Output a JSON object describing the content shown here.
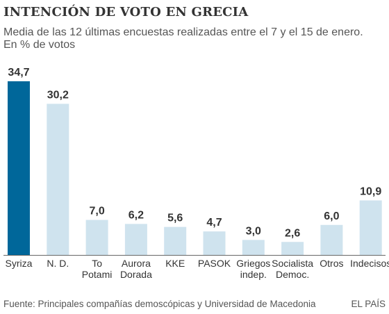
{
  "header": {
    "title": "INTENCIÓN DE VOTO EN GRECIA",
    "subtitle_line1": "Media de las 12 últimas encuestas realizadas entre el 7 y el 15 de enero.",
    "subtitle_line2": "En % de votos"
  },
  "footer": {
    "source": "Fuente: Principales compañías demoscópicas y Universidad de Macedonia",
    "brand": "EL PAÍS"
  },
  "colors": {
    "highlight": "#00679a",
    "bar": "#cfe3ee",
    "baseline": "#666666",
    "text": "#333333"
  },
  "chart_data": {
    "type": "bar",
    "title": "INTENCIÓN DE VOTO EN GRECIA",
    "subtitle": "Media de las 12 últimas encuestas realizadas entre el 7 y el 15 de enero. En % de votos",
    "categories": [
      [
        "Syriza"
      ],
      [
        "N. D."
      ],
      [
        "To",
        "Potami"
      ],
      [
        "Aurora",
        "Dorada"
      ],
      [
        "KKE"
      ],
      [
        "PASOK"
      ],
      [
        "Griegos",
        "indep."
      ],
      [
        "Socialista",
        "Democ."
      ],
      [
        "Otros"
      ],
      [
        "Indecisos"
      ]
    ],
    "values": [
      34.7,
      30.2,
      7.0,
      6.2,
      5.6,
      4.7,
      3.0,
      2.6,
      6.0,
      10.9
    ],
    "value_labels": [
      "34,7",
      "30,2",
      "7,0",
      "6,2",
      "5,6",
      "4,7",
      "3,0",
      "2,6",
      "6,0",
      "10,9"
    ],
    "highlight_index": 0,
    "ylim": [
      0,
      34.7
    ],
    "xlabel": "",
    "ylabel": "",
    "grid": false,
    "legend": "none"
  }
}
